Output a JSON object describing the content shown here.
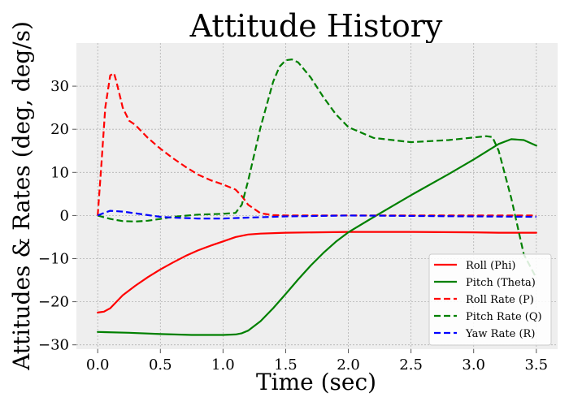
{
  "chart_data": {
    "type": "line",
    "title": "Attitude History",
    "xlabel": "Time (sec)",
    "ylabel": "Attitudes & Rates (deg, deg/s)",
    "xlim": [
      -0.17,
      3.67
    ],
    "ylim": [
      -31,
      40
    ],
    "xticks": [
      0.0,
      0.5,
      1.0,
      1.5,
      2.0,
      2.5,
      3.0,
      3.5
    ],
    "yticks": [
      -30,
      -20,
      -10,
      0,
      10,
      20,
      30
    ],
    "xtick_labels": [
      "0.0",
      "0.5",
      "1.0",
      "1.5",
      "2.0",
      "2.5",
      "3.0",
      "3.5"
    ],
    "ytick_labels": [
      "−30",
      "−20",
      "−10",
      "0",
      "10",
      "20",
      "30"
    ],
    "grid": true,
    "legend_position": "bottom-right",
    "series": [
      {
        "name": "Roll (Phi)",
        "color": "#ff0000",
        "dash": "solid",
        "x": [
          0.0,
          0.05,
          0.1,
          0.15,
          0.2,
          0.3,
          0.4,
          0.5,
          0.6,
          0.7,
          0.8,
          0.9,
          1.0,
          1.1,
          1.2,
          1.3,
          1.5,
          2.0,
          2.5,
          3.0,
          3.2,
          3.5
        ],
        "y": [
          -22.5,
          -22.3,
          -21.5,
          -20.0,
          -18.5,
          -16.3,
          -14.3,
          -12.5,
          -10.9,
          -9.4,
          -8.1,
          -7.0,
          -6.0,
          -5.0,
          -4.4,
          -4.2,
          -4.0,
          -3.8,
          -3.8,
          -3.9,
          -4.0,
          -4.0
        ]
      },
      {
        "name": "Pitch (Theta)",
        "color": "#008000",
        "dash": "solid",
        "x": [
          0.0,
          0.25,
          0.5,
          0.75,
          1.0,
          1.1,
          1.15,
          1.2,
          1.3,
          1.4,
          1.5,
          1.6,
          1.7,
          1.8,
          1.9,
          2.0,
          2.2,
          2.5,
          2.8,
          3.0,
          3.2,
          3.3,
          3.4,
          3.5
        ],
        "y": [
          -27.0,
          -27.2,
          -27.5,
          -27.7,
          -27.7,
          -27.6,
          -27.3,
          -26.7,
          -24.5,
          -21.5,
          -18.2,
          -14.8,
          -11.6,
          -8.7,
          -6.1,
          -3.9,
          -0.4,
          4.7,
          9.6,
          13.0,
          16.6,
          17.7,
          17.5,
          16.2
        ]
      },
      {
        "name": "Roll Rate (P)",
        "color": "#ff0000",
        "dash": "dashed",
        "x": [
          0.0,
          0.03,
          0.06,
          0.1,
          0.13,
          0.15,
          0.2,
          0.25,
          0.3,
          0.35,
          0.4,
          0.5,
          0.6,
          0.7,
          0.8,
          0.9,
          1.0,
          1.1,
          1.15,
          1.2,
          1.3,
          1.4,
          1.5,
          2.0,
          2.5,
          3.0,
          3.5
        ],
        "y": [
          0.0,
          12.0,
          25.0,
          32.5,
          33.0,
          31.0,
          25.0,
          22.0,
          21.0,
          19.5,
          18.0,
          15.5,
          13.3,
          11.3,
          9.5,
          8.2,
          7.2,
          6.0,
          4.5,
          2.5,
          0.5,
          0.1,
          0.0,
          0.0,
          0.0,
          0.0,
          0.0
        ]
      },
      {
        "name": "Pitch Rate (Q)",
        "color": "#008000",
        "dash": "dashed",
        "x": [
          0.0,
          0.1,
          0.2,
          0.3,
          0.4,
          0.5,
          0.6,
          0.8,
          1.0,
          1.1,
          1.15,
          1.2,
          1.3,
          1.4,
          1.45,
          1.5,
          1.55,
          1.6,
          1.7,
          1.8,
          1.9,
          2.0,
          2.2,
          2.5,
          2.8,
          3.0,
          3.1,
          3.15,
          3.2,
          3.3,
          3.4,
          3.5
        ],
        "y": [
          0.0,
          -0.8,
          -1.3,
          -1.4,
          -1.2,
          -0.8,
          -0.3,
          0.2,
          0.4,
          0.6,
          2.5,
          8.0,
          20.5,
          31.0,
          34.5,
          36.0,
          36.2,
          35.5,
          32.0,
          27.5,
          23.5,
          20.5,
          18.0,
          17.0,
          17.5,
          18.1,
          18.4,
          18.2,
          15.0,
          4.0,
          -9.0,
          -14.5
        ]
      },
      {
        "name": "Yaw Rate (R)",
        "color": "#0000ff",
        "dash": "dashed",
        "x": [
          0.0,
          0.05,
          0.1,
          0.2,
          0.3,
          0.4,
          0.5,
          0.6,
          0.8,
          1.0,
          1.2,
          1.5,
          2.0,
          2.5,
          3.0,
          3.5
        ],
        "y": [
          0.0,
          0.6,
          1.1,
          0.9,
          0.5,
          0.1,
          -0.3,
          -0.5,
          -0.7,
          -0.7,
          -0.5,
          -0.2,
          0.0,
          -0.1,
          -0.2,
          -0.3
        ]
      }
    ]
  }
}
